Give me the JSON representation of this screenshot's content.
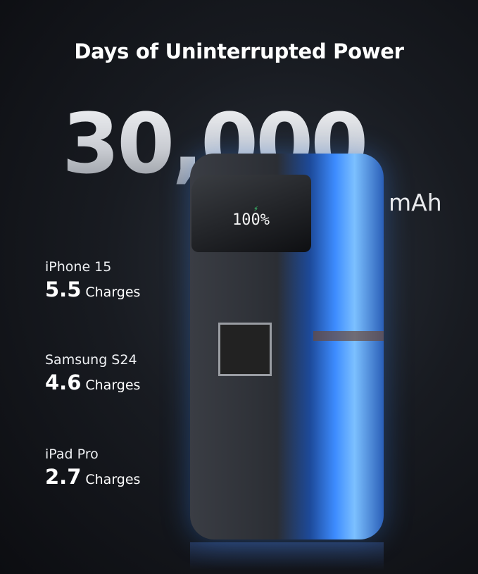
{
  "title": "Days of Uninterrupted Power",
  "capacity": {
    "value": "30,000",
    "unit": "mAh"
  },
  "device_display": "100%",
  "stats": [
    {
      "device": "iPhone 15",
      "value": "5.5",
      "label": "Charges"
    },
    {
      "device": "Samsung S24",
      "value": "4.6",
      "label": "Charges"
    },
    {
      "device": "iPad Pro",
      "value": "2.7",
      "label": "Charges"
    }
  ]
}
